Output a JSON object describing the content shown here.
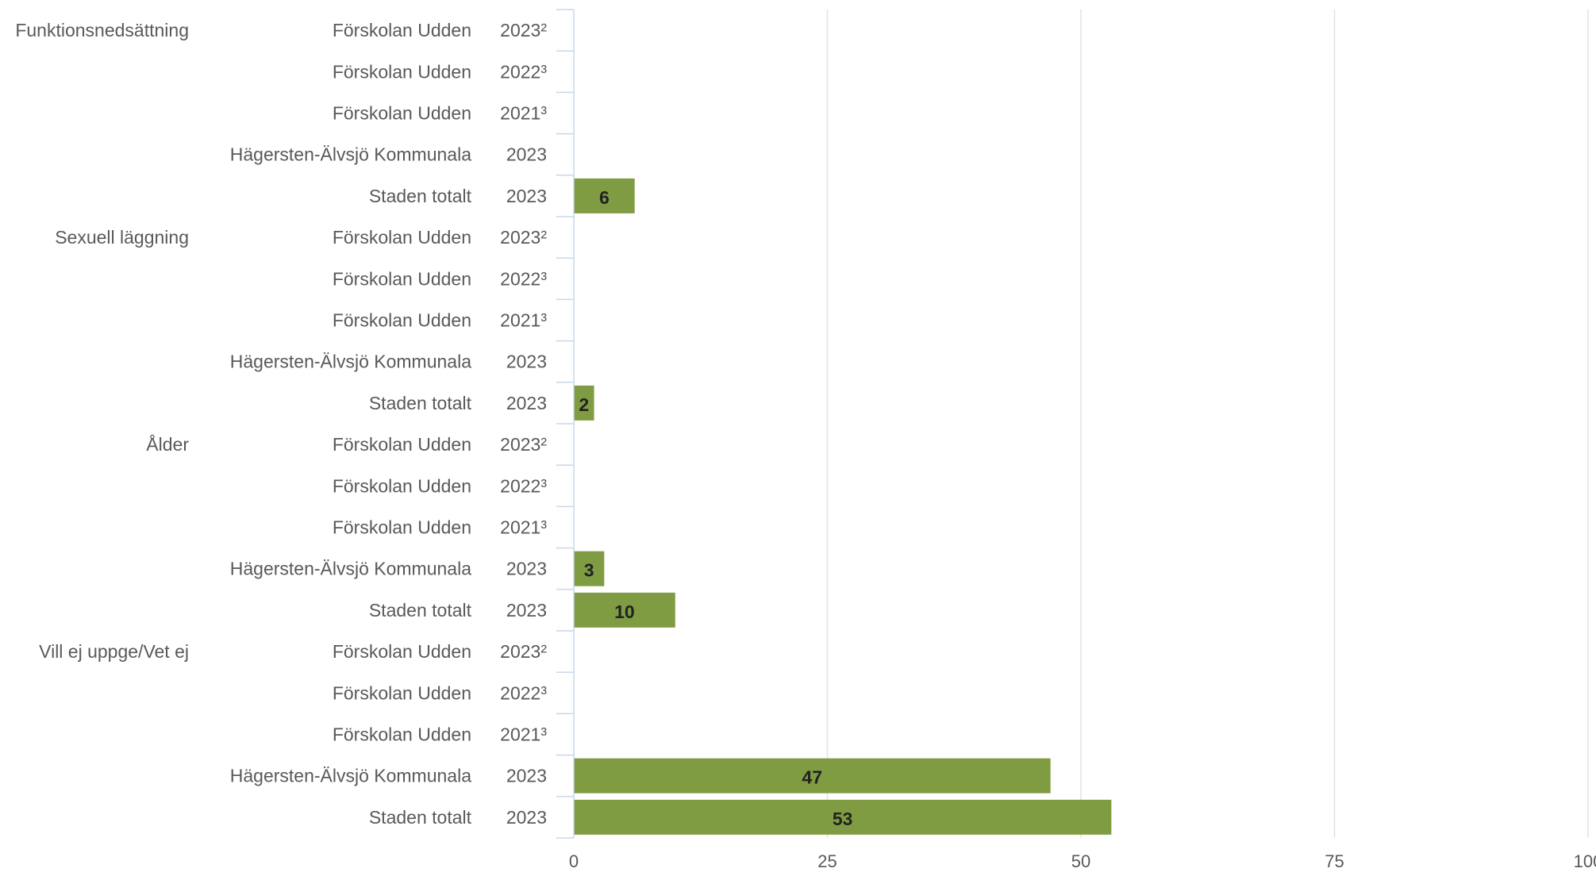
{
  "chart_data": {
    "type": "bar",
    "orientation": "horizontal",
    "title": "",
    "xlabel": "",
    "ylabel": "",
    "xlim": [
      0,
      100
    ],
    "x_ticks": [
      "0",
      "25",
      "50",
      "75",
      "100"
    ],
    "grid": true,
    "bar_color": "#7f9c43",
    "groups": [
      {
        "label": "Funktionsnedsättning",
        "rows": [
          {
            "name": "Förskolan Udden",
            "year": "2023²",
            "value": null
          },
          {
            "name": "Förskolan Udden",
            "year": "2022³",
            "value": null
          },
          {
            "name": "Förskolan Udden",
            "year": "2021³",
            "value": null
          },
          {
            "name": "Hägersten-Älvsjö Kommunala",
            "year": "2023",
            "value": null
          },
          {
            "name": "Staden totalt",
            "year": "2023",
            "value": 6
          }
        ]
      },
      {
        "label": "Sexuell läggning",
        "rows": [
          {
            "name": "Förskolan Udden",
            "year": "2023²",
            "value": null
          },
          {
            "name": "Förskolan Udden",
            "year": "2022³",
            "value": null
          },
          {
            "name": "Förskolan Udden",
            "year": "2021³",
            "value": null
          },
          {
            "name": "Hägersten-Älvsjö Kommunala",
            "year": "2023",
            "value": null
          },
          {
            "name": "Staden totalt",
            "year": "2023",
            "value": 2
          }
        ]
      },
      {
        "label": "Ålder",
        "rows": [
          {
            "name": "Förskolan Udden",
            "year": "2023²",
            "value": null
          },
          {
            "name": "Förskolan Udden",
            "year": "2022³",
            "value": null
          },
          {
            "name": "Förskolan Udden",
            "year": "2021³",
            "value": null
          },
          {
            "name": "Hägersten-Älvsjö Kommunala",
            "year": "2023",
            "value": 3
          },
          {
            "name": "Staden totalt",
            "year": "2023",
            "value": 10
          }
        ]
      },
      {
        "label": "Vill ej uppge/Vet ej",
        "rows": [
          {
            "name": "Förskolan Udden",
            "year": "2023²",
            "value": null
          },
          {
            "name": "Förskolan Udden",
            "year": "2022³",
            "value": null
          },
          {
            "name": "Förskolan Udden",
            "year": "2021³",
            "value": null
          },
          {
            "name": "Hägersten-Älvsjö Kommunala",
            "year": "2023",
            "value": 47
          },
          {
            "name": "Staden totalt",
            "year": "2023",
            "value": 53
          }
        ]
      }
    ]
  }
}
